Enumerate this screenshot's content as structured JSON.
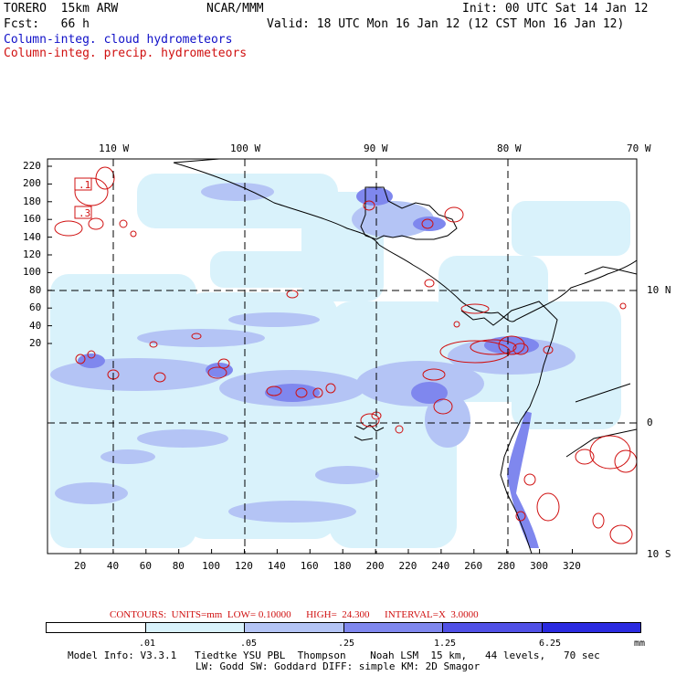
{
  "header": {
    "model": "TORERO  15km ARW",
    "org": "NCAR/MMM",
    "init": "Init: 00 UTC Sat 14 Jan 12",
    "fcst": "Fcst:   66 h",
    "valid": "Valid: 18 UTC Mon 16 Jan 12 (12 CST Mon 16 Jan 12)",
    "field1": "Column-integ. cloud hydrometeors",
    "field2": "Column-integ. precip. hydrometeors"
  },
  "colors": {
    "cloud_field": "#1010c8",
    "precip_field": "#d01010",
    "shade": [
      "#ffffff",
      "#d9f2fb",
      "#b4c4f5",
      "#7f87ee",
      "#5050e6",
      "#2a2ae0"
    ]
  },
  "map": {
    "lon_labels": [
      "110 W",
      "100 W",
      "90 W",
      "80 W",
      "70 W"
    ],
    "lat_labels": [
      "10 N",
      "0",
      "10 S"
    ],
    "y_ticks": [
      "220",
      "200",
      "180",
      "160",
      "140",
      "120",
      "100",
      "80",
      "60",
      "40",
      "20"
    ],
    "x_ticks": [
      "20",
      "40",
      "60",
      "80",
      "100",
      "120",
      "140",
      "160",
      "180",
      "200",
      "220",
      "240",
      "260",
      "280",
      "300",
      "320"
    ],
    "contour_labels": [
      ".1",
      ".3"
    ]
  },
  "contours": {
    "text": "CONTOURS:  UNITS=mm  LOW= 0.10000      HIGH=  24.300      INTERVAL=X  3.0000"
  },
  "colorbar": {
    "labels": [
      ".01",
      ".05",
      ".25",
      "1.25",
      "6.25"
    ],
    "units": "mm"
  },
  "footer": {
    "line1": "Model Info: V3.3.1   Tiedtke YSU PBL  Thompson    Noah LSM  15 km,   44 levels,   70 sec",
    "line2": "LW: Godd SW: Goddard DIFF: simple KM: 2D Smagor"
  }
}
